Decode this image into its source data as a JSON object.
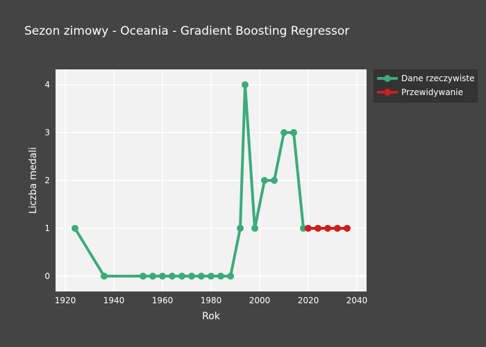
{
  "chart_data": {
    "type": "line",
    "title": "Sezon zimowy - Oceania - Gradient Boosting Regressor",
    "xlabel": "Rok",
    "ylabel": "Liczba medali",
    "xlim": [
      1916,
      2044
    ],
    "ylim": [
      -0.32,
      4.32
    ],
    "x_ticks": [
      1920,
      1940,
      1960,
      1980,
      2000,
      2020,
      2040
    ],
    "y_ticks": [
      0,
      1,
      2,
      3,
      4
    ],
    "grid": true,
    "legend_position": "top-right",
    "series": [
      {
        "name": "Dane rzeczywiste",
        "color": "#3cab7a",
        "x": [
          1924,
          1936,
          1952,
          1956,
          1960,
          1964,
          1968,
          1972,
          1976,
          1980,
          1984,
          1988,
          1992,
          1994,
          1998,
          2002,
          2006,
          2010,
          2014,
          2018
        ],
        "y": [
          1,
          0,
          0,
          0,
          0,
          0,
          0,
          0,
          0,
          0,
          0,
          0,
          1,
          4,
          1,
          2,
          2,
          3,
          3,
          1
        ]
      },
      {
        "name": "Przewidywanie",
        "color": "#cc1f1f",
        "x": [
          2020,
          2024,
          2028,
          2032,
          2036
        ],
        "y": [
          1,
          1,
          1,
          1,
          1
        ]
      }
    ]
  },
  "colors": {
    "background": "#444444",
    "plot_background": "#f2f2f2",
    "legend_background": "#333333"
  }
}
